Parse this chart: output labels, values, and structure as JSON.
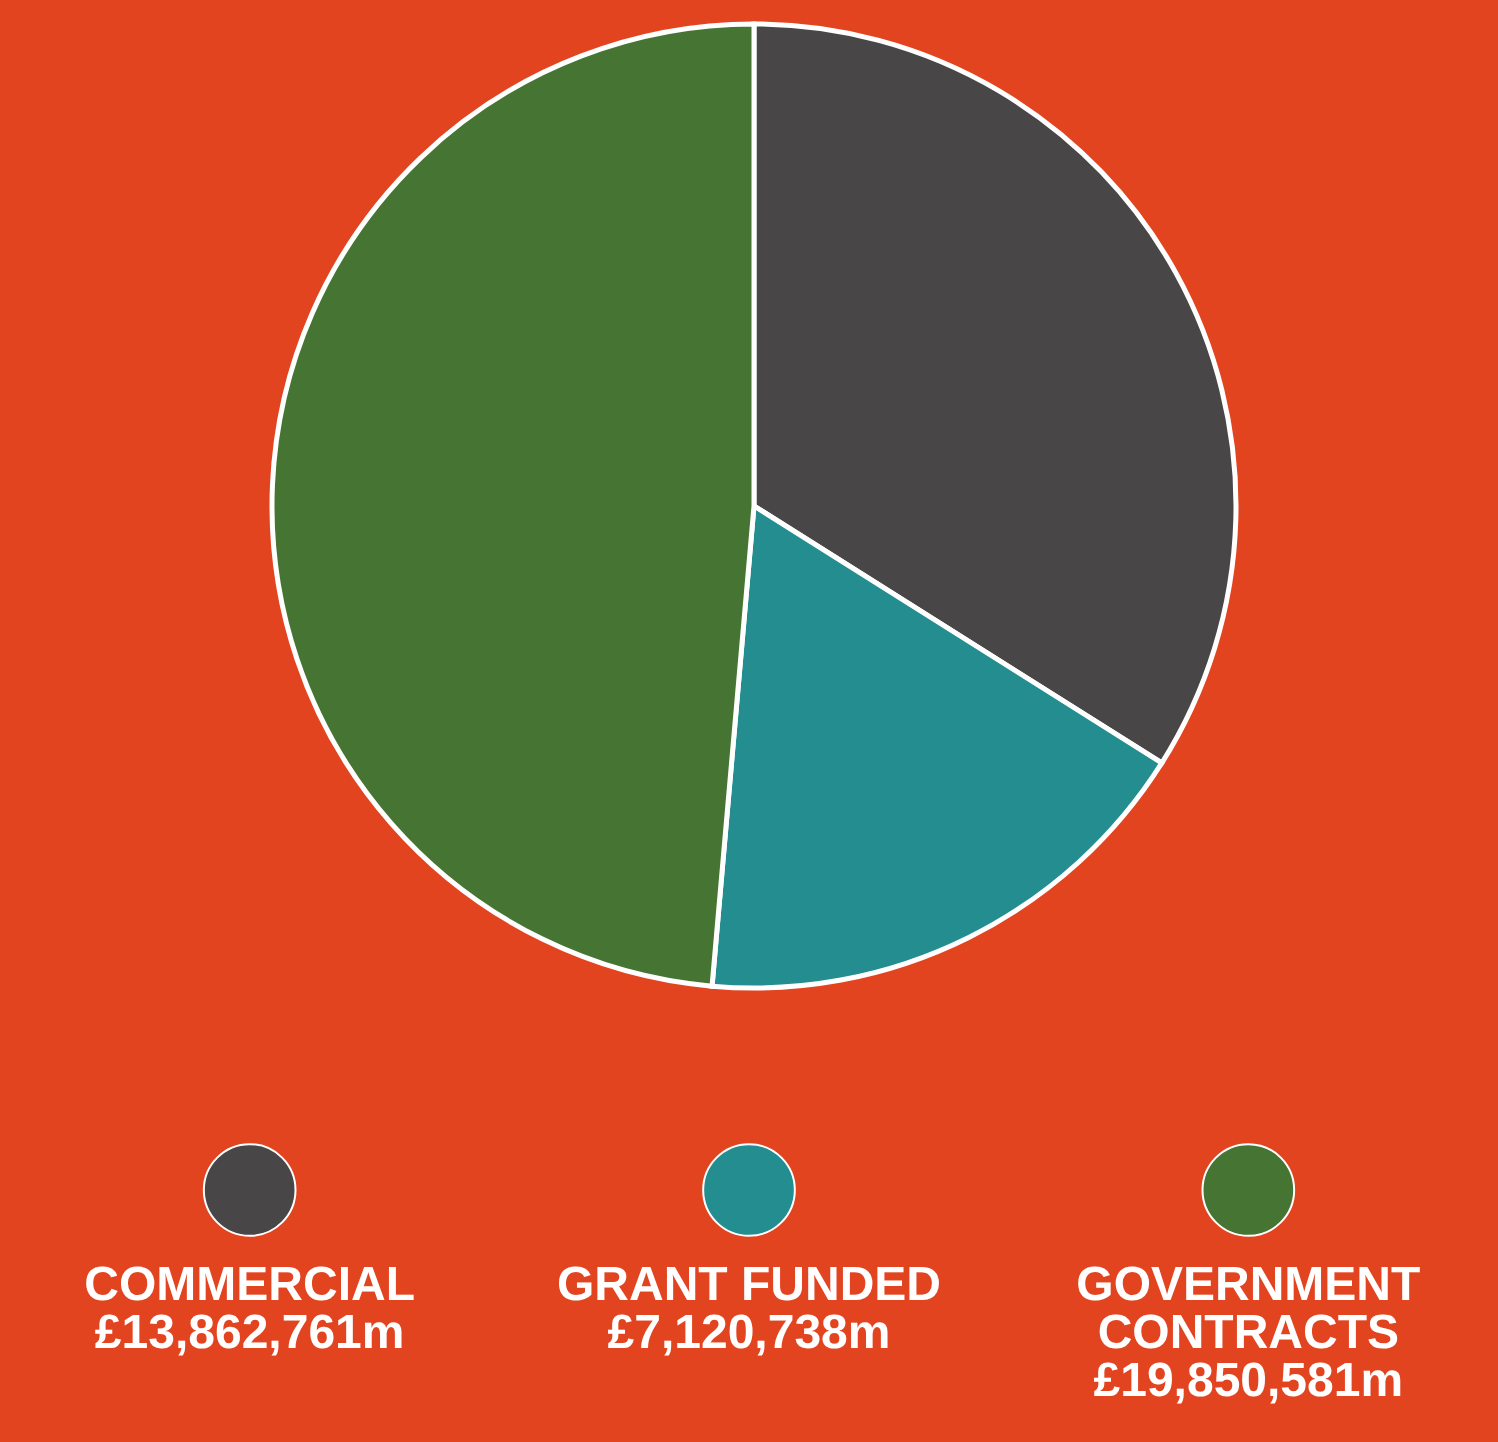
{
  "chart_data": {
    "type": "pie",
    "categories": [
      "COMMERCIAL",
      "GRANT FUNDED",
      "GOVERNMENT CONTRACTS"
    ],
    "values": [
      13862761,
      7120738,
      19850581
    ],
    "value_labels": [
      "£13,862,761m",
      "£7,120,738m",
      "£19,850,581m"
    ],
    "colors": [
      "#484647",
      "#238d8f",
      "#467533"
    ],
    "legend": "bottom"
  }
}
